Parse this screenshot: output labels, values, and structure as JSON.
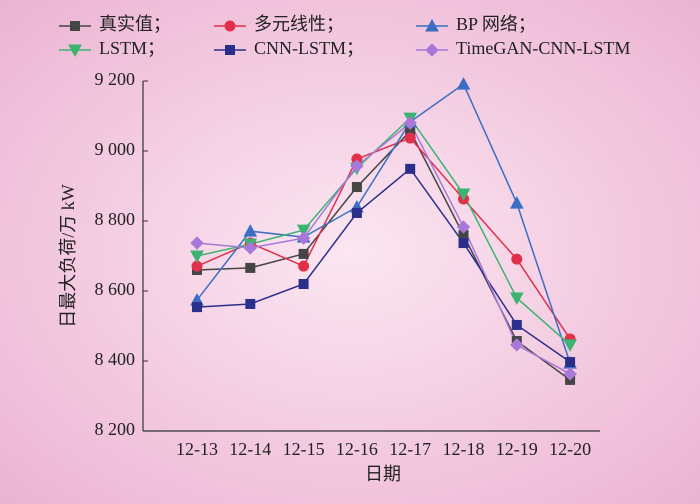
{
  "chart_data": {
    "type": "line",
    "xlabel": "日期",
    "ylabel": "日最大负荷/万 kW",
    "categories": [
      "12-13",
      "12-14",
      "12-15",
      "12-16",
      "12-17",
      "12-18",
      "12-19",
      "12-20"
    ],
    "series": [
      {
        "name": "真实值；",
        "color": "#454545",
        "marker": "square",
        "values": [
          8660,
          8666,
          8706,
          8897,
          9057,
          8760,
          8457,
          8346
        ]
      },
      {
        "name": "多元线性；",
        "color": "#e0304a",
        "marker": "circle",
        "values": [
          8671,
          8737,
          8671,
          8977,
          9037,
          8863,
          8691,
          8463
        ]
      },
      {
        "name": "BP 网络；",
        "color": "#3a6fc4",
        "marker": "triangle-up",
        "values": [
          8574,
          8771,
          8754,
          8840,
          9083,
          9191,
          8851,
          8394
        ]
      },
      {
        "name": "LSTM；",
        "color": "#3cb371",
        "marker": "triangle-down",
        "values": [
          8700,
          8734,
          8774,
          8951,
          9094,
          8877,
          8580,
          8446
        ]
      },
      {
        "name": "CNN-LSTM；",
        "color": "#2b2f8c",
        "marker": "square",
        "values": [
          8554,
          8563,
          8620,
          8823,
          8949,
          8737,
          8503,
          8397
        ]
      },
      {
        "name": "TimeGAN-CNN-LSTM",
        "color": "#a878d8",
        "marker": "diamond",
        "values": [
          8737,
          8723,
          8751,
          8957,
          9080,
          8783,
          8446,
          8363
        ]
      }
    ],
    "ylim": [
      8200,
      9200
    ],
    "yticks": [
      {
        "value": 8200,
        "label": "8 200"
      },
      {
        "value": 8400,
        "label": "8 400"
      },
      {
        "value": 8600,
        "label": "8 600"
      },
      {
        "value": 8800,
        "label": "8 800"
      },
      {
        "value": 9000,
        "label": "9 000"
      },
      {
        "value": 9200,
        "label": "9 200"
      }
    ],
    "grid": false,
    "legend": "top"
  }
}
